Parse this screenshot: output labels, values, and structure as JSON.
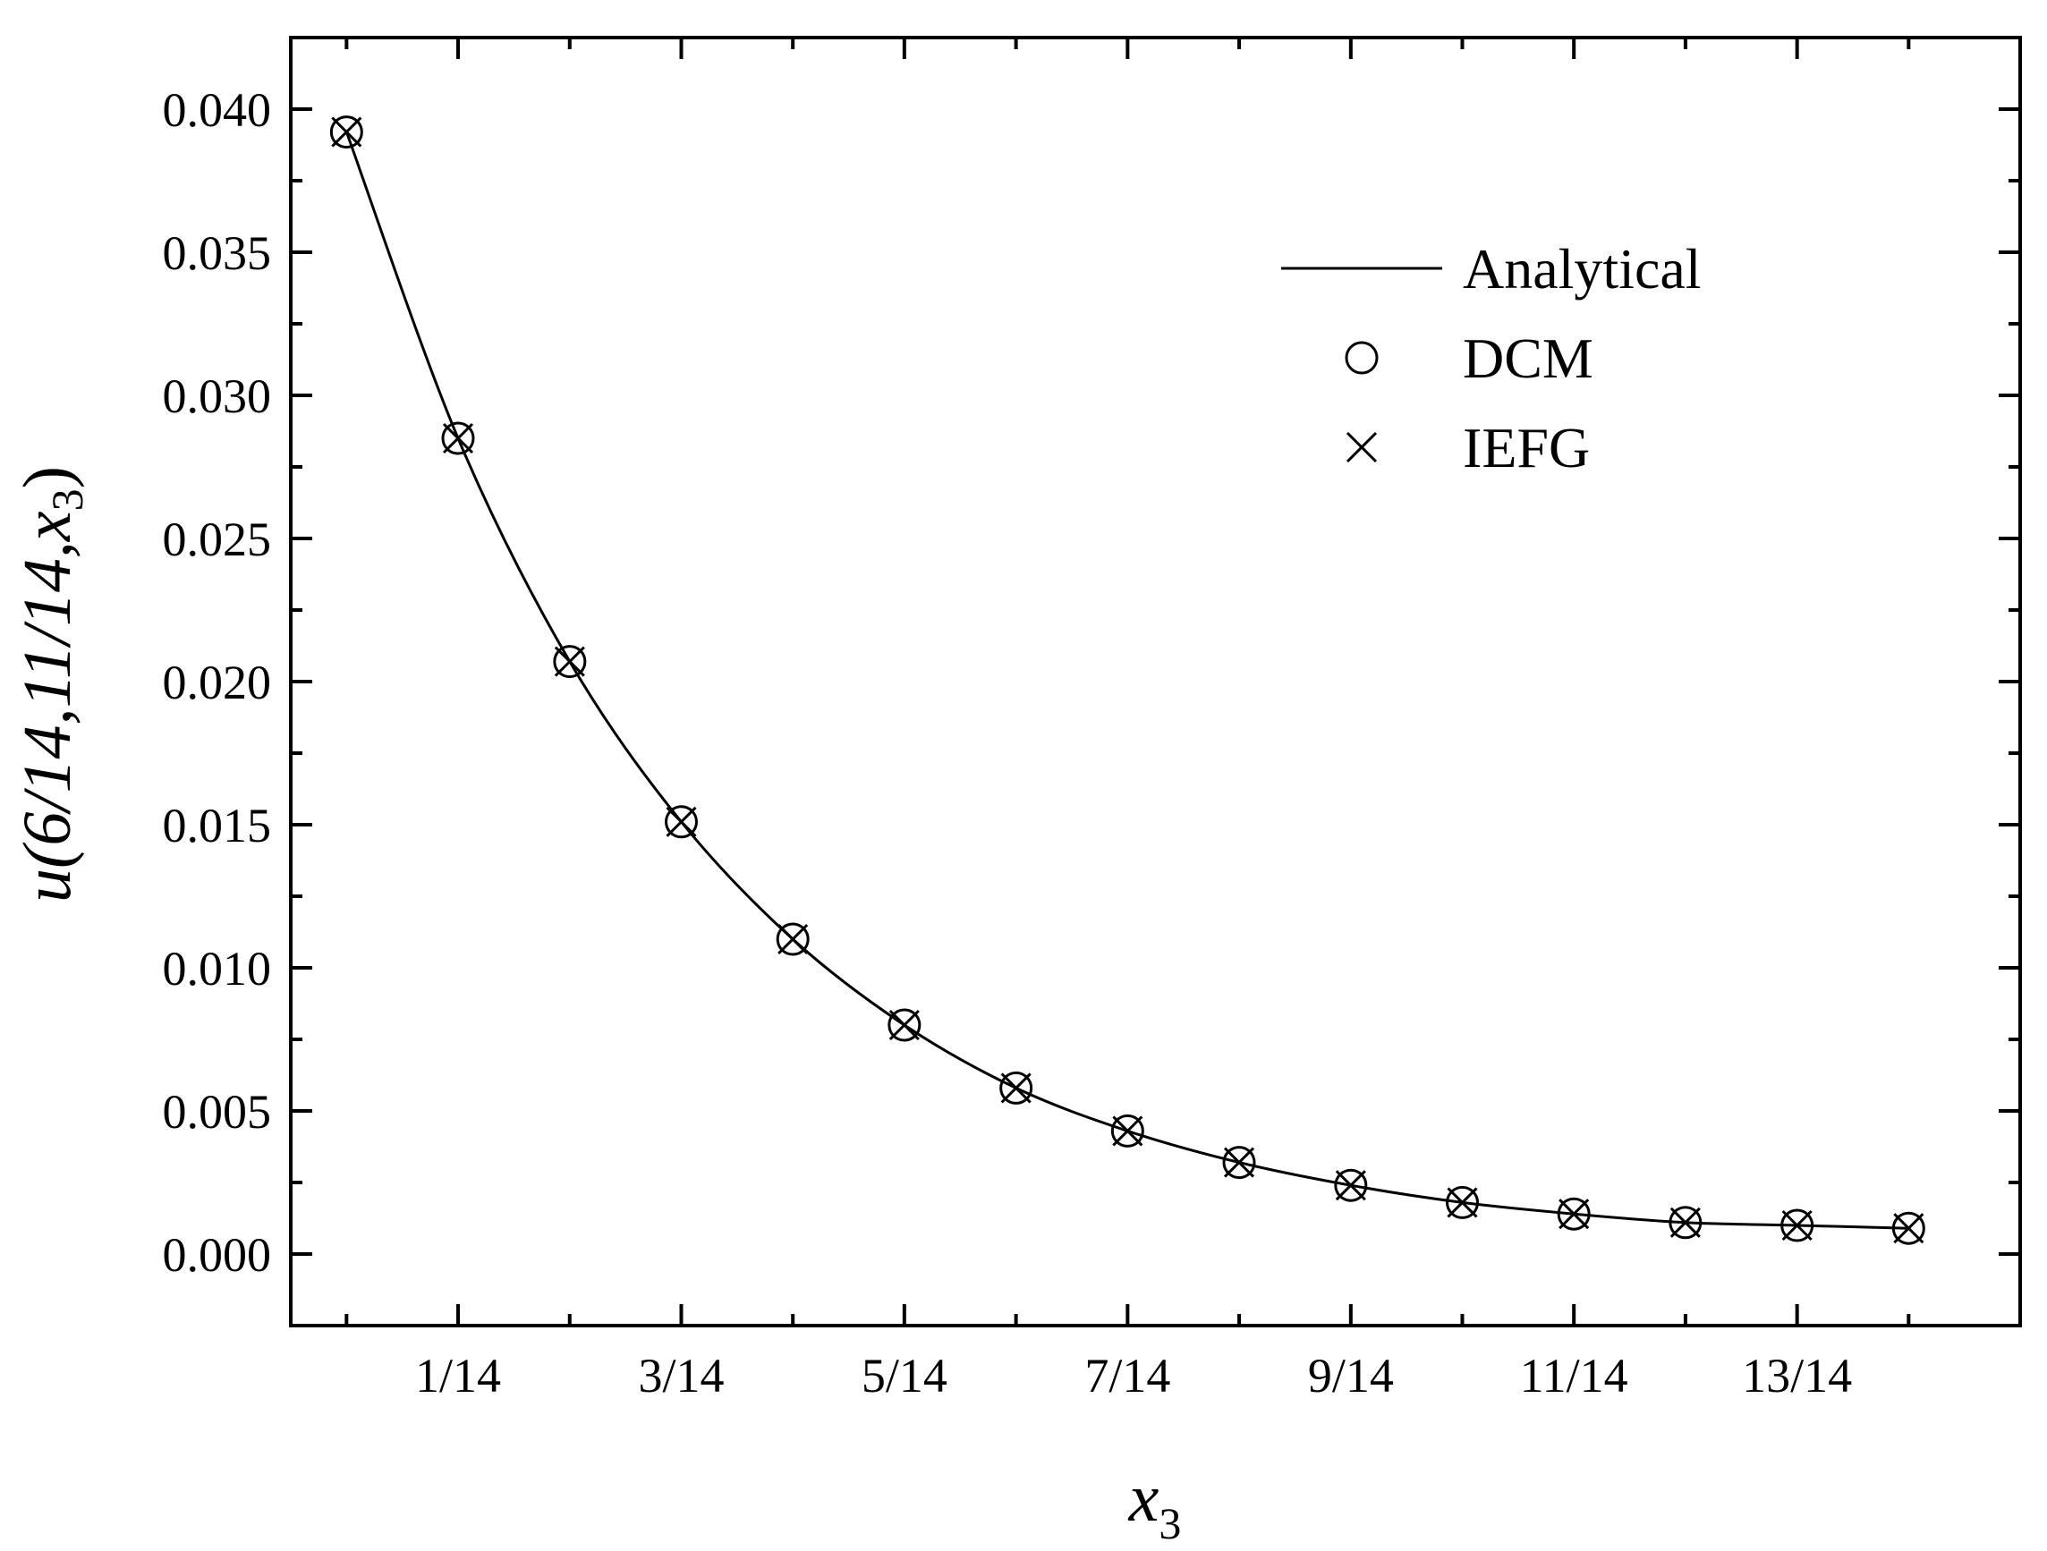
{
  "chart_data": {
    "type": "line",
    "title": "",
    "xlabel": {
      "var": "x",
      "sub": "3"
    },
    "ylabel": {
      "prefix": "u(6/14,11/14,",
      "var": "x",
      "sub": "3",
      "suffix": ")"
    },
    "xlim": [
      -0.0357,
      1.0714
    ],
    "ylim": [
      -0.0025,
      0.0425
    ],
    "x_tick_labels": [
      {
        "x": 0.0714,
        "label": "1/14"
      },
      {
        "x": 0.2143,
        "label": "3/14"
      },
      {
        "x": 0.3571,
        "label": "5/14"
      },
      {
        "x": 0.5,
        "label": "7/14"
      },
      {
        "x": 0.6429,
        "label": "9/14"
      },
      {
        "x": 0.7857,
        "label": "11/14"
      },
      {
        "x": 0.9286,
        "label": "13/14"
      }
    ],
    "y_ticks": [
      0,
      0.005,
      0.01,
      0.015,
      0.02,
      0.025,
      0.03,
      0.035,
      0.04
    ],
    "y_tick_labels": [
      "0.000",
      "0.005",
      "0.010",
      "0.015",
      "0.020",
      "0.025",
      "0.030",
      "0.035",
      "0.040"
    ],
    "grid": false,
    "legend": {
      "position": "top-right",
      "entries": [
        "Analytical",
        "DCM",
        "IEFG"
      ]
    },
    "series": [
      {
        "name": "Analytical",
        "style": "line",
        "x": [
          0,
          0.0714,
          0.1429,
          0.2143,
          0.2857,
          0.3571,
          0.4286,
          0.5,
          0.5714,
          0.6429,
          0.7143,
          0.7857,
          0.8571,
          0.9286,
          1.0
        ],
        "y": [
          0.0392,
          0.0285,
          0.0207,
          0.0151,
          0.011,
          0.008,
          0.0058,
          0.0043,
          0.0032,
          0.0024,
          0.0018,
          0.0014,
          0.0011,
          0.001,
          0.0009
        ]
      },
      {
        "name": "DCM",
        "style": "circle",
        "x": [
          0,
          0.0714,
          0.1429,
          0.2143,
          0.2857,
          0.3571,
          0.4286,
          0.5,
          0.5714,
          0.6429,
          0.7143,
          0.7857,
          0.8571,
          0.9286,
          1.0
        ],
        "y": [
          0.0392,
          0.0285,
          0.0207,
          0.0151,
          0.011,
          0.008,
          0.0058,
          0.0043,
          0.0032,
          0.0024,
          0.0018,
          0.0014,
          0.0011,
          0.001,
          0.0009
        ]
      },
      {
        "name": "IEFG",
        "style": "cross",
        "x": [
          0,
          0.0714,
          0.1429,
          0.2143,
          0.2857,
          0.3571,
          0.4286,
          0.5,
          0.5714,
          0.6429,
          0.7143,
          0.7857,
          0.8571,
          0.9286,
          1.0
        ],
        "y": [
          0.0392,
          0.0285,
          0.0207,
          0.0151,
          0.011,
          0.008,
          0.0058,
          0.0043,
          0.0032,
          0.0024,
          0.0018,
          0.0014,
          0.0011,
          0.001,
          0.0009
        ]
      }
    ]
  }
}
